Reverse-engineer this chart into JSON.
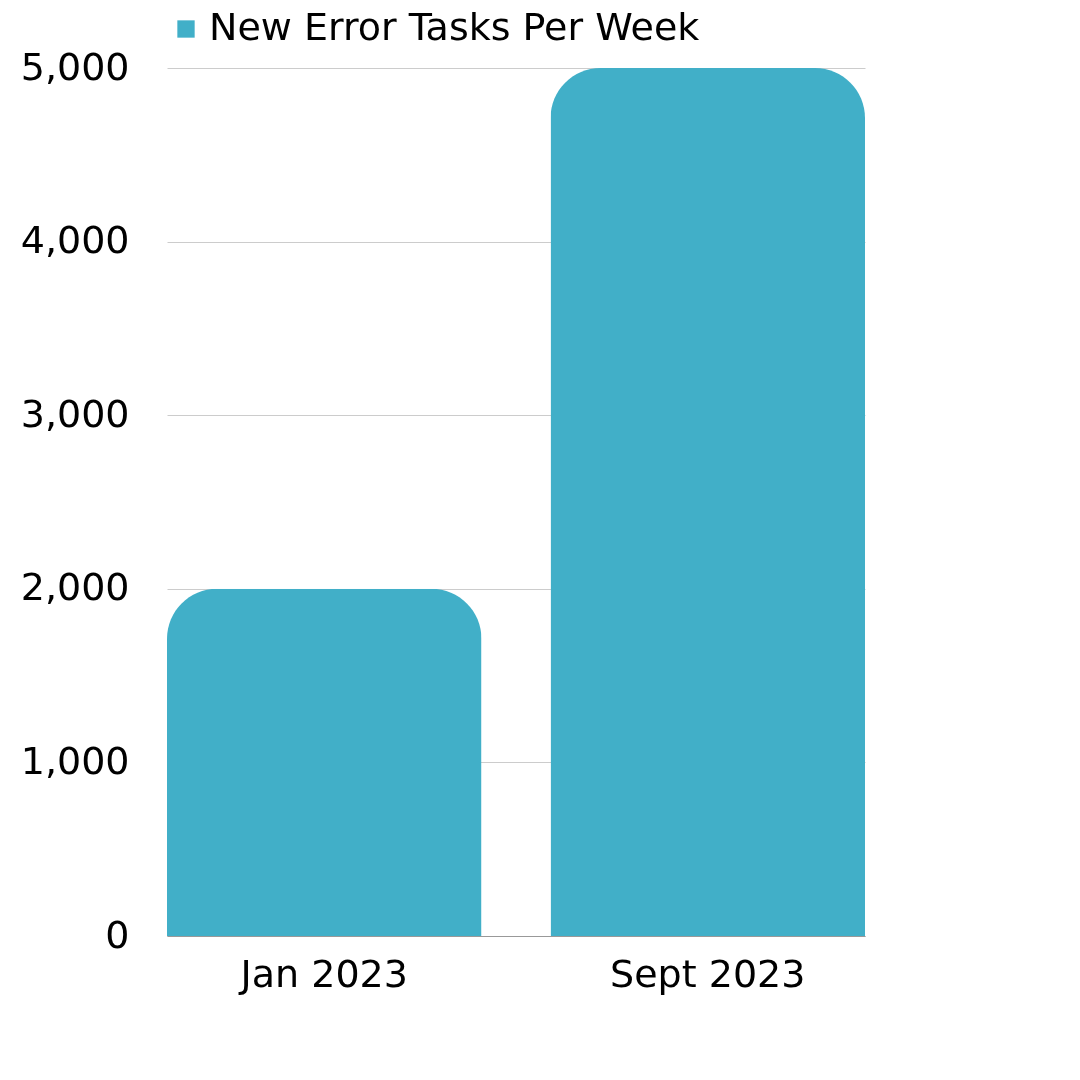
{
  "chart_data": {
    "type": "bar",
    "categories": [
      "Jan 2023",
      "Sept 2023"
    ],
    "series": [
      {
        "name": "New Error Tasks Per Week",
        "color": "#41afc8",
        "values": [
          2000,
          5000
        ]
      }
    ],
    "ylim": [
      0,
      5000
    ],
    "yticks": [
      0,
      {
        "value": 1000,
        "label": "1,000"
      },
      {
        "value": 2000,
        "label": "2,000"
      },
      {
        "value": 3000,
        "label": "3,000"
      },
      {
        "value": 4000,
        "label": "4,000"
      },
      {
        "value": 5000,
        "label": "5,000"
      }
    ],
    "grid": "y",
    "legend": "top"
  }
}
